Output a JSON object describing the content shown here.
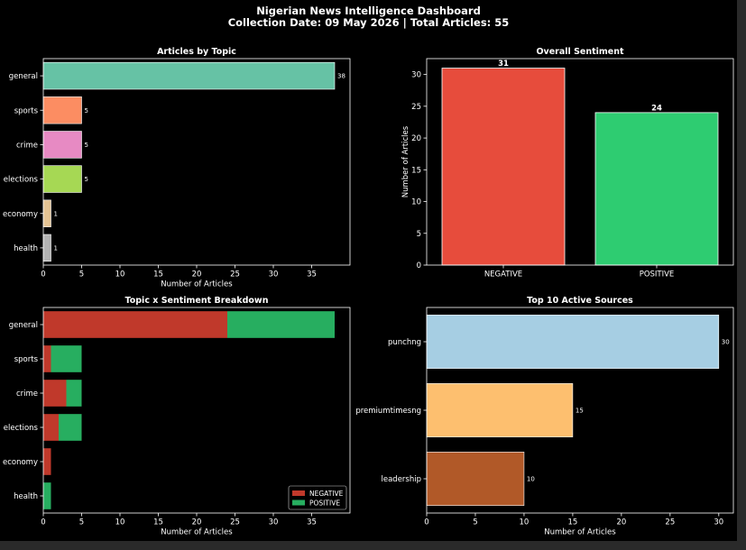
{
  "header": {
    "title": "Nigerian News Intelligence Dashboard",
    "subtitle": "Collection Date: 09 May 2026 | Total Articles: 55"
  },
  "chart_data": [
    {
      "type": "bar",
      "orientation": "horizontal",
      "title": "Articles by Topic",
      "xlabel": "Number of Articles",
      "ylabel": "",
      "categories": [
        "general",
        "sports",
        "crime",
        "elections",
        "economy",
        "health"
      ],
      "values": [
        38,
        5,
        5,
        5,
        1,
        1
      ],
      "colors": [
        "#66c2a5",
        "#fc8d62",
        "#e78ac3",
        "#a6d854",
        "#e5c494",
        "#b3b3b3"
      ],
      "xlim": [
        0,
        40
      ],
      "xticks": [
        0,
        5,
        10,
        15,
        20,
        25,
        30,
        35
      ],
      "data_labels": true
    },
    {
      "type": "bar",
      "orientation": "vertical",
      "title": "Overall Sentiment",
      "xlabel": "",
      "ylabel": "Number of Articles",
      "categories": [
        "NEGATIVE",
        "POSITIVE"
      ],
      "values": [
        31,
        24
      ],
      "colors": [
        "#e74c3c",
        "#2ecc71"
      ],
      "ylim": [
        0,
        32.5
      ],
      "yticks": [
        0,
        5,
        10,
        15,
        20,
        25,
        30
      ],
      "data_labels": true
    },
    {
      "type": "bar",
      "orientation": "horizontal",
      "stacked": true,
      "title": "Topic x Sentiment Breakdown",
      "xlabel": "Number of Articles",
      "ylabel": "",
      "categories": [
        "general",
        "sports",
        "crime",
        "elections",
        "economy",
        "health"
      ],
      "series": [
        {
          "name": "NEGATIVE",
          "values": [
            24,
            1,
            3,
            2,
            1,
            0
          ],
          "color": "#c0392b"
        },
        {
          "name": "POSITIVE",
          "values": [
            14,
            4,
            2,
            3,
            0,
            1
          ],
          "color": "#27ae60"
        }
      ],
      "xlim": [
        0,
        40
      ],
      "xticks": [
        0,
        5,
        10,
        15,
        20,
        25,
        30,
        35
      ],
      "legend": "lower-right"
    },
    {
      "type": "bar",
      "orientation": "horizontal",
      "title": "Top 10 Active Sources",
      "xlabel": "Number of Articles",
      "ylabel": "",
      "categories": [
        "punchng",
        "premiumtimesng",
        "leadership"
      ],
      "values": [
        30,
        15,
        10
      ],
      "colors": [
        "#a6cee3",
        "#fdbf6f",
        "#b15928"
      ],
      "xlim": [
        0,
        31.5
      ],
      "xticks": [
        0,
        5,
        10,
        15,
        20,
        25,
        30
      ],
      "data_labels": true
    }
  ]
}
